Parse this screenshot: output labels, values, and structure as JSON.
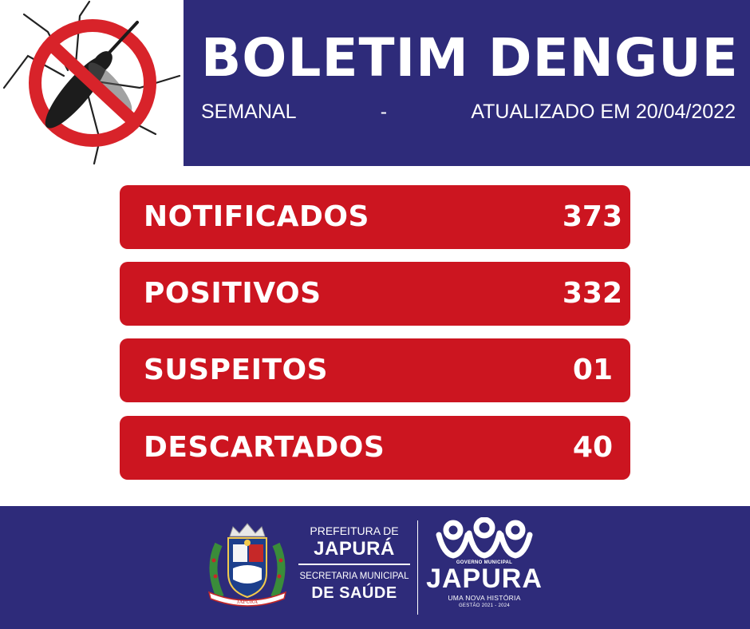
{
  "header": {
    "title": "BOLETIM DENGUE",
    "subtitle_left": "SEMANAL",
    "subtitle_sep": "-",
    "subtitle_right": "ATUALIZADO EM 20/04/2022",
    "background": "#2e2b7a"
  },
  "icon": {
    "name": "no-mosquito-icon",
    "ring_color": "#d8232a"
  },
  "stats": [
    {
      "label": "NOTIFICADOS",
      "value": "373"
    },
    {
      "label": "POSITIVOS",
      "value": "332"
    },
    {
      "label": "SUSPEITOS",
      "value": "01"
    },
    {
      "label": "DESCARTADOS",
      "value": "40"
    }
  ],
  "stats_color": "#cc1520",
  "footer": {
    "prefeitura": "PREFEITURA DE",
    "city": "JAPURÁ",
    "secretaria": "SECRETARIA MUNICIPAL",
    "saude": "DE SAÚDE",
    "gov_small": "GOVERNO MUNICIPAL",
    "gov_name": "JAPURA",
    "gov_slogan": "UMA NOVA HISTÓRIA",
    "gov_term": "GESTÃO 2021 - 2024",
    "crest_icon": "municipal-crest-icon"
  }
}
